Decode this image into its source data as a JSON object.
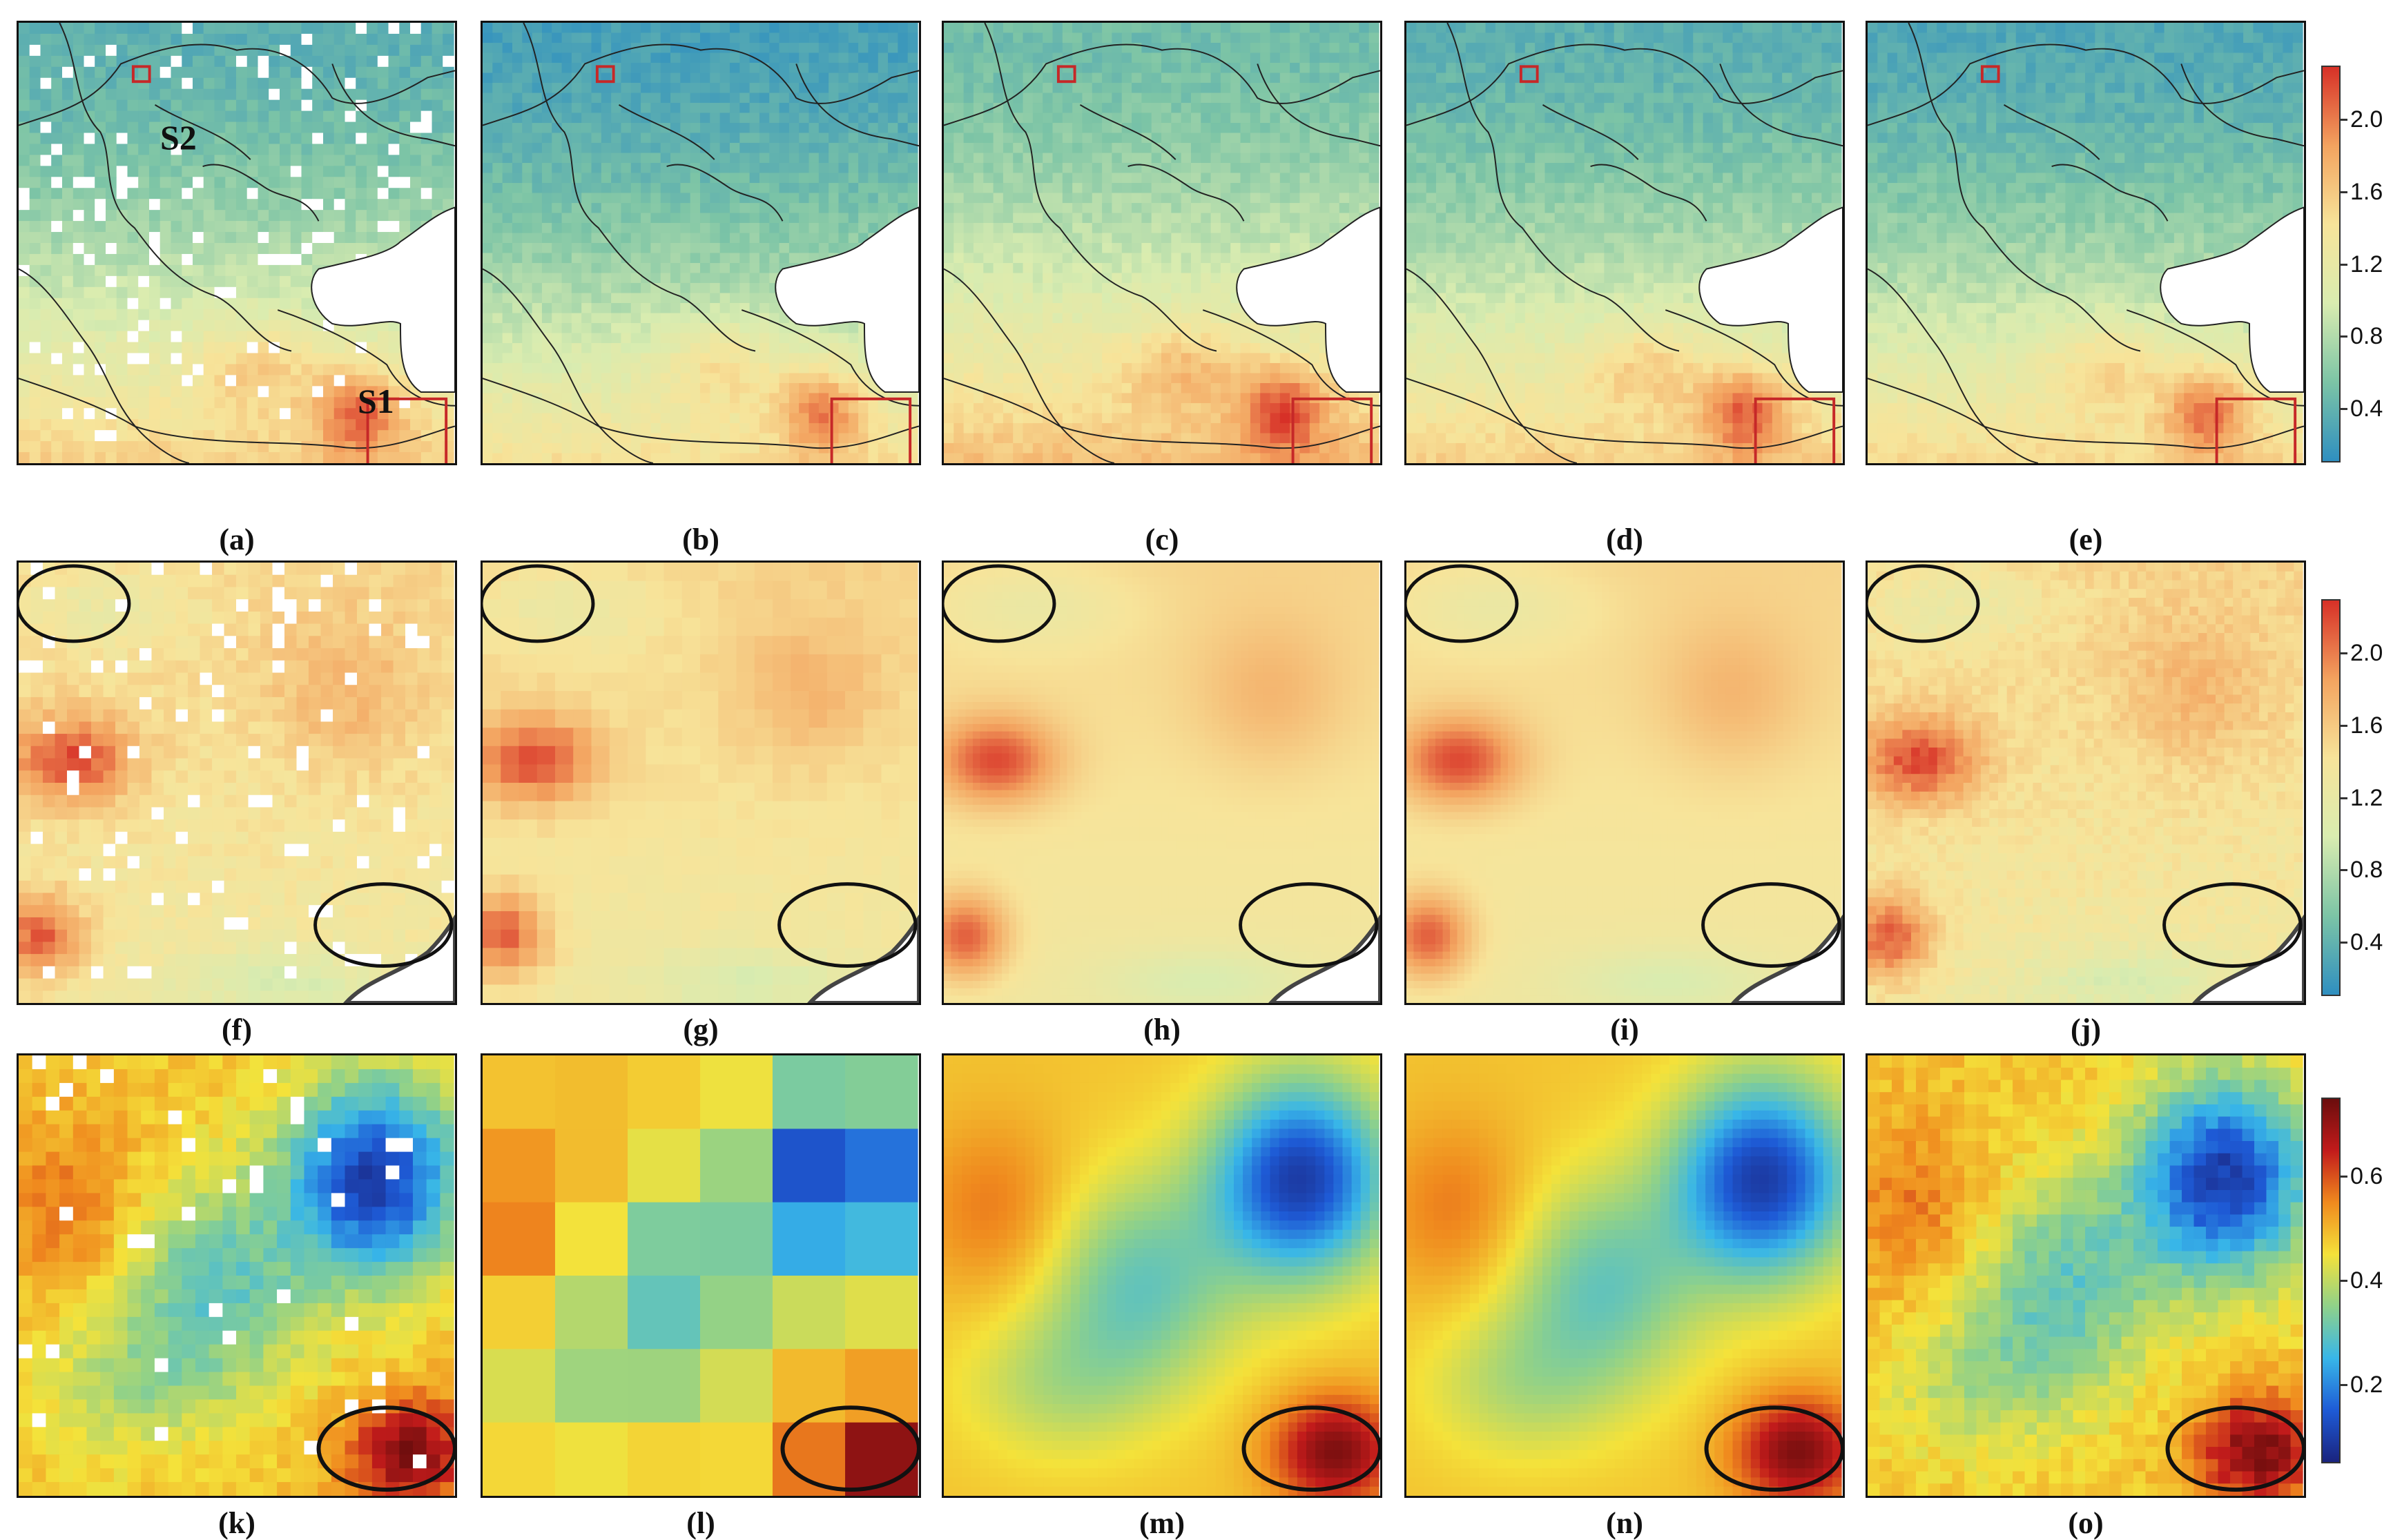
{
  "rows": [
    {
      "panels": [
        {
          "caption": "(a)",
          "kind": "map",
          "tone": "gappy"
        },
        {
          "caption": "(b)",
          "kind": "map",
          "tone": "teal"
        },
        {
          "caption": "(c)",
          "kind": "map",
          "tone": "warm"
        },
        {
          "caption": "(d)",
          "kind": "map",
          "tone": "mid"
        },
        {
          "caption": "(e)",
          "kind": "map",
          "tone": "light"
        }
      ]
    },
    {
      "panels": [
        {
          "caption": "(f)",
          "kind": "zoom",
          "tone": "gappy"
        },
        {
          "caption": "(g)",
          "kind": "zoom",
          "tone": "blocky"
        },
        {
          "caption": "(h)",
          "kind": "zoom",
          "tone": "smooth"
        },
        {
          "caption": "(i)",
          "kind": "zoom",
          "tone": "smooth"
        },
        {
          "caption": "(j)",
          "kind": "zoom",
          "tone": "fine"
        }
      ]
    },
    {
      "panels": [
        {
          "caption": "(k)",
          "kind": "field",
          "tone": "gappy"
        },
        {
          "caption": "(l)",
          "kind": "field",
          "tone": "blocky"
        },
        {
          "caption": "(m)",
          "kind": "field",
          "tone": "smooth"
        },
        {
          "caption": "(n)",
          "kind": "field",
          "tone": "smooth"
        },
        {
          "caption": "(o)",
          "kind": "field",
          "tone": "fine"
        }
      ]
    }
  ],
  "site_labels": {
    "s1": "S1",
    "s2": "S2"
  },
  "colorbars": [
    {
      "ticks": [
        "2.0",
        "1.6",
        "1.2",
        "0.8",
        "0.4"
      ],
      "min": 0.1,
      "max": 2.3,
      "colors": [
        "#2f8fc0",
        "#7cc4a6",
        "#d9ecb0",
        "#f7e49a",
        "#f3a35f",
        "#d73027"
      ]
    },
    {
      "ticks": [
        "2.0",
        "1.6",
        "1.2",
        "0.8",
        "0.4"
      ],
      "min": 0.1,
      "max": 2.3,
      "colors": [
        "#2f8fc0",
        "#7cc4a6",
        "#d9ecb0",
        "#f7e49a",
        "#f3a35f",
        "#d73027"
      ]
    },
    {
      "ticks": [
        "0.6",
        "0.4",
        "0.2"
      ],
      "min": 0.05,
      "max": 0.75,
      "colors": [
        "#1a237e",
        "#1e5bd6",
        "#38b6e8",
        "#8fd18a",
        "#f4e23a",
        "#f08a1e",
        "#c21b1b",
        "#6b0d0d"
      ]
    }
  ],
  "colors": {
    "box": "#c62828",
    "ellipse": "#111111",
    "border": "#222222",
    "sea": "#ffffff"
  }
}
